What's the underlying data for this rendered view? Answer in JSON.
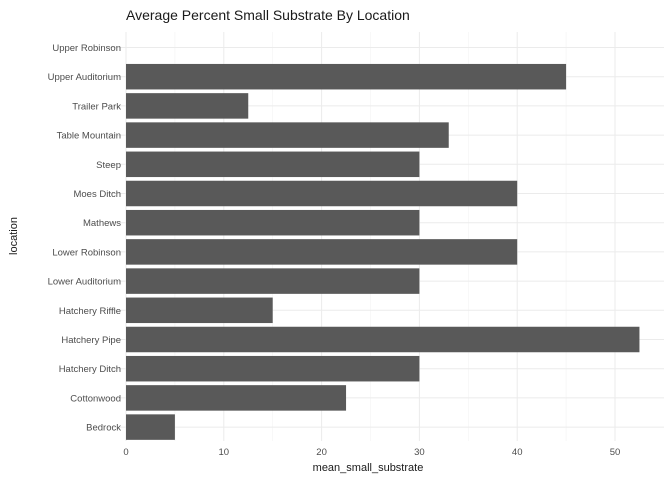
{
  "chart_data": {
    "type": "bar",
    "orientation": "horizontal",
    "title": "Average Percent Small Substrate By Location",
    "xlabel": "mean_small_substrate",
    "ylabel": "location",
    "categories": [
      "Bedrock",
      "Cottonwood",
      "Hatchery Ditch",
      "Hatchery Pipe",
      "Hatchery Riffle",
      "Lower Auditorium",
      "Lower Robinson",
      "Mathews",
      "Moes Ditch",
      "Steep",
      "Table Mountain",
      "Trailer Park",
      "Upper Auditorium",
      "Upper Robinson"
    ],
    "values": [
      5,
      22.5,
      30,
      52.5,
      15,
      30,
      40,
      30,
      40,
      30,
      33,
      12.5,
      45,
      0
    ],
    "xlim": [
      0,
      55
    ],
    "xticks": [
      0,
      10,
      20,
      30,
      40,
      50
    ],
    "grid": true,
    "bar_color": "#595959"
  }
}
